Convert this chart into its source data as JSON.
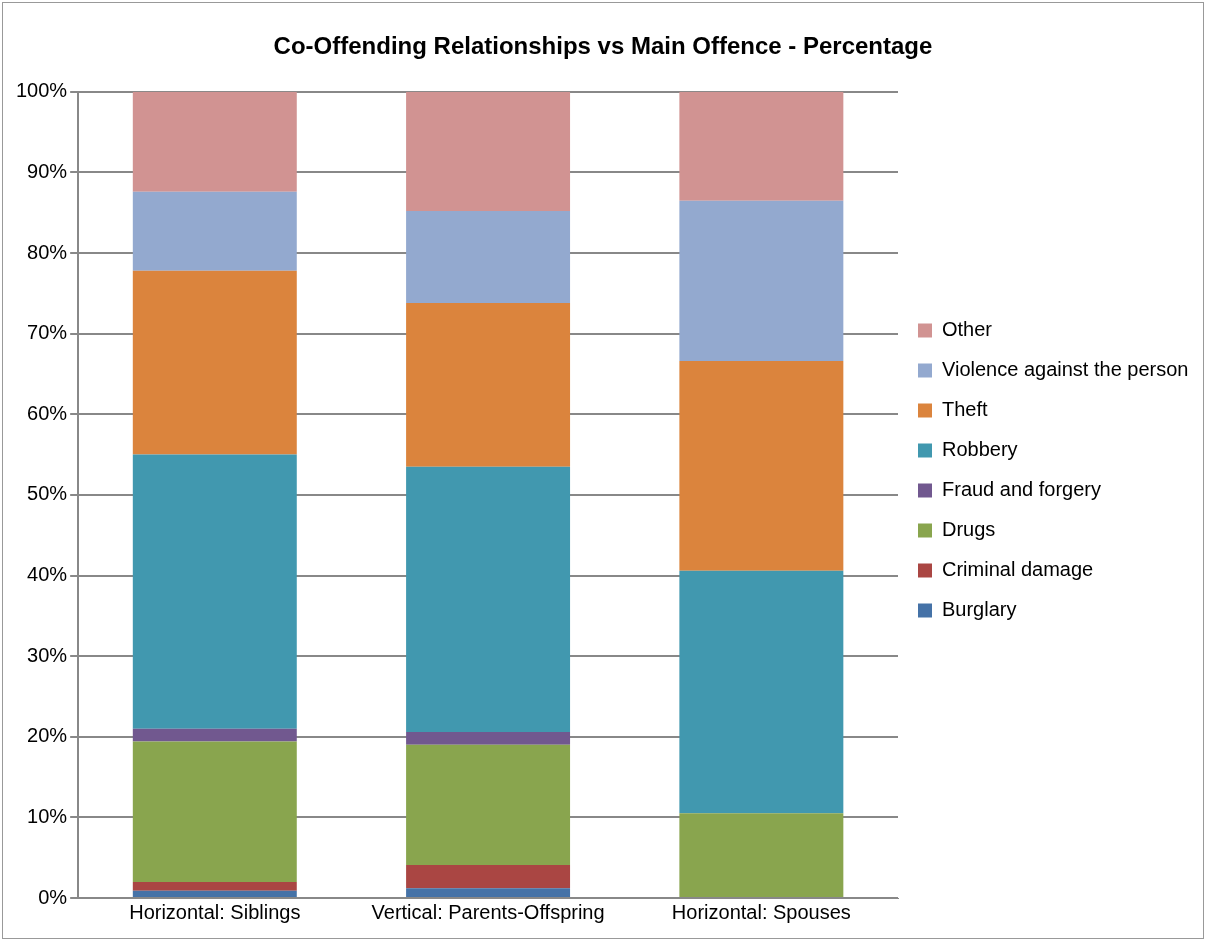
{
  "chart_data": {
    "type": "bar",
    "title": "Co-Offending Relationships vs Main Offence - Percentage",
    "categories": [
      "Horizontal: Siblings",
      "Vertical: Parents-Offspring",
      "Horizontal: Spouses"
    ],
    "stacked": true,
    "ylim": [
      0,
      100
    ],
    "yticks": [
      {
        "value": 0,
        "label": "0%"
      },
      {
        "value": 10,
        "label": "10%"
      },
      {
        "value": 20,
        "label": "20%"
      },
      {
        "value": 30,
        "label": "30%"
      },
      {
        "value": 40,
        "label": "40%"
      },
      {
        "value": 50,
        "label": "50%"
      },
      {
        "value": 60,
        "label": "60%"
      },
      {
        "value": 70,
        "label": "70%"
      },
      {
        "value": 80,
        "label": "80%"
      },
      {
        "value": 90,
        "label": "90%"
      },
      {
        "value": 100,
        "label": "100%"
      }
    ],
    "grid": "y",
    "legend": "right",
    "series": [
      {
        "name": "Burglary",
        "color": "#4572a7",
        "values": [
          0.9,
          1.2,
          0
        ]
      },
      {
        "name": "Criminal damage",
        "color": "#aa4643",
        "values": [
          1.1,
          2.9,
          0
        ]
      },
      {
        "name": "Drugs",
        "color": "#89a54e",
        "values": [
          17.4,
          14.9,
          10.5
        ]
      },
      {
        "name": "Fraud and forgery",
        "color": "#71588f",
        "values": [
          1.6,
          1.6,
          0
        ]
      },
      {
        "name": "Robbery",
        "color": "#4198af",
        "values": [
          34.0,
          32.9,
          30.1
        ]
      },
      {
        "name": "Theft",
        "color": "#db843d",
        "values": [
          22.8,
          20.3,
          26.0
        ]
      },
      {
        "name": "Violence against the person",
        "color": "#93a9cf",
        "values": [
          9.8,
          11.4,
          19.9
        ]
      },
      {
        "name": "Other",
        "color": "#d19392",
        "values": [
          12.4,
          14.8,
          13.5
        ]
      }
    ]
  }
}
